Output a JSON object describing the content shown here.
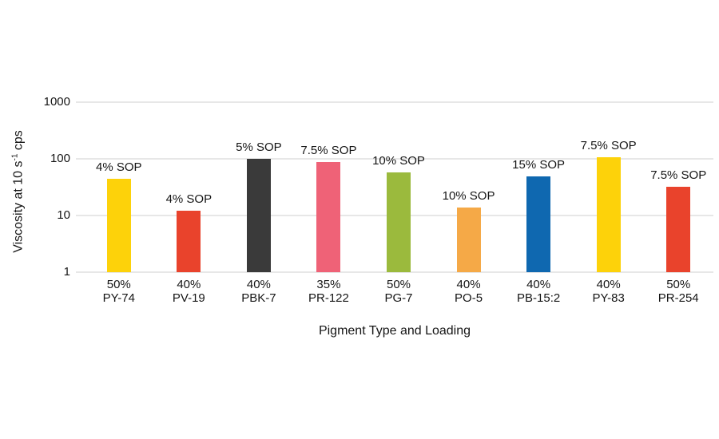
{
  "chart_data": {
    "type": "bar",
    "title": "",
    "xlabel": "Pigment Type and Loading",
    "ylabel": {
      "prefix": "Viscosity at 10 s",
      "superscript": "-1",
      "suffix": " cps"
    },
    "y_scale": "log",
    "ylim": [
      1,
      1000
    ],
    "yticks": [
      1000,
      100,
      10,
      1
    ],
    "grid": true,
    "legend_position": "none",
    "categories": [
      "50% PY-74",
      "40% PV-19",
      "40% PBK-7",
      "35% PR-122",
      "50% PG-7",
      "40% PO-5",
      "40% PB-15:2",
      "40% PY-83",
      "50% PR-254"
    ],
    "bars": [
      {
        "loading": "50%",
        "pigment": "PY-74",
        "value": 45,
        "annotation": "4% SOP",
        "color": "#FDD20A"
      },
      {
        "loading": "40%",
        "pigment": "PV-19",
        "value": 12,
        "annotation": "4% SOP",
        "color": "#E9432C"
      },
      {
        "loading": "40%",
        "pigment": "PBK-7",
        "value": 100,
        "annotation": "5% SOP",
        "color": "#3A3A3A"
      },
      {
        "loading": "35%",
        "pigment": "PR-122",
        "value": 88,
        "annotation": "7.5% SOP",
        "color": "#EF6277"
      },
      {
        "loading": "50%",
        "pigment": "PG-7",
        "value": 58,
        "annotation": "10% SOP",
        "color": "#9BBA3D"
      },
      {
        "loading": "40%",
        "pigment": "PO-5",
        "value": 14,
        "annotation": "10% SOP",
        "color": "#F5A947"
      },
      {
        "loading": "40%",
        "pigment": "PB-15:2",
        "value": 49,
        "annotation": "15% SOP",
        "color": "#0F68B0"
      },
      {
        "loading": "40%",
        "pigment": "PY-83",
        "value": 108,
        "annotation": "7.5% SOP",
        "color": "#FDD20A"
      },
      {
        "loading": "50%",
        "pigment": "PR-254",
        "value": 32,
        "annotation": "7.5% SOP",
        "color": "#E9432C"
      }
    ],
    "colors": {
      "gridline": "#E7E7E7",
      "text": "#151515",
      "background": "#FFFFFF"
    }
  }
}
